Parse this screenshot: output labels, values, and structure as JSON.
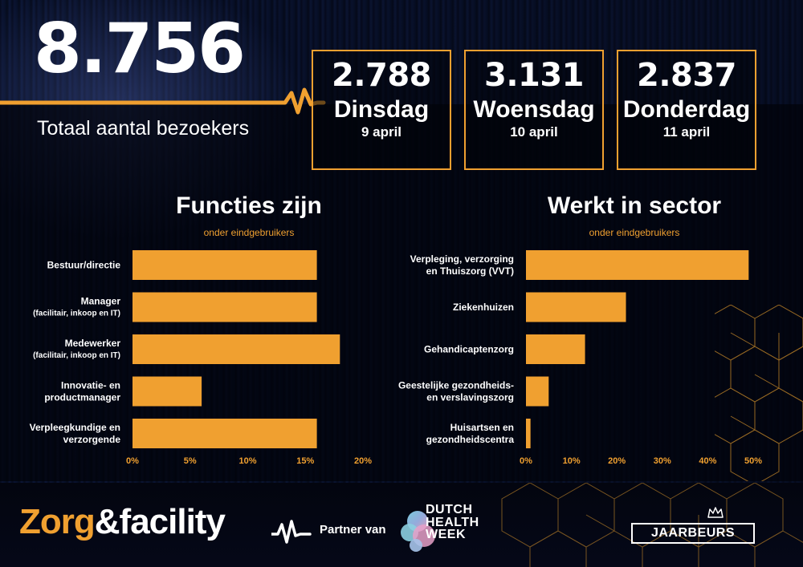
{
  "header": {
    "total_visitors": "8.756",
    "total_label": "Totaal aantal bezoekers"
  },
  "days": [
    {
      "count": "2.788",
      "name": "Dinsdag",
      "date": "9 april"
    },
    {
      "count": "3.131",
      "name": "Woensdag",
      "date": "10 april"
    },
    {
      "count": "2.837",
      "name": "Donderdag",
      "date": "11 april"
    }
  ],
  "chart_data": [
    {
      "type": "bar",
      "orientation": "horizontal",
      "title": "Functies zijn",
      "subtitle": "onder eindgebruikers",
      "categories": [
        {
          "label": [
            "Bestuur/directie"
          ],
          "sub": ""
        },
        {
          "label": [
            "Manager"
          ],
          "sub": "(facilitair, inkoop en IT)"
        },
        {
          "label": [
            "Medewerker"
          ],
          "sub": "(facilitair, inkoop en IT)"
        },
        {
          "label": [
            "Innovatie- en",
            "productmanager"
          ],
          "sub": ""
        },
        {
          "label": [
            "Verpleegkundige en",
            "verzorgende"
          ],
          "sub": ""
        }
      ],
      "values": [
        16,
        16,
        18,
        6,
        16
      ],
      "xlim": [
        0,
        20
      ],
      "ticks": [
        0,
        5,
        10,
        15,
        20
      ],
      "tick_labels": [
        "0%",
        "5%",
        "10%",
        "15%",
        "20%"
      ],
      "grid": false
    },
    {
      "type": "bar",
      "orientation": "horizontal",
      "title": "Werkt in sector",
      "subtitle": "onder eindgebruikers",
      "categories": [
        {
          "label": [
            "Verpleging, verzorging",
            "en Thuiszorg (VVT)"
          ],
          "sub": ""
        },
        {
          "label": [
            "Ziekenhuizen"
          ],
          "sub": ""
        },
        {
          "label": [
            "Gehandicaptenzorg"
          ],
          "sub": ""
        },
        {
          "label": [
            "Geestelijke gezondheids-",
            "en verslavingszorg"
          ],
          "sub": ""
        },
        {
          "label": [
            "Huisartsen en",
            "gezondheidscentra"
          ],
          "sub": ""
        }
      ],
      "values": [
        49,
        22,
        13,
        5,
        1
      ],
      "xlim": [
        0,
        50
      ],
      "ticks": [
        0,
        10,
        20,
        30,
        40,
        50
      ],
      "tick_labels": [
        "0%",
        "10%",
        "20%",
        "30%",
        "40%",
        "50%"
      ],
      "grid": false
    }
  ],
  "footer": {
    "brand_zorg": "Zorg",
    "brand_rest": "&facility",
    "partner_label": "Partner van",
    "dhw_line1": "DUTCH",
    "dhw_line2": "HEALTH",
    "dhw_line3": "WEEK",
    "jaarbeurs": "JAARBEURS"
  },
  "colors": {
    "accent": "#f0a030",
    "background": "#060a1c",
    "text": "#ffffff"
  }
}
